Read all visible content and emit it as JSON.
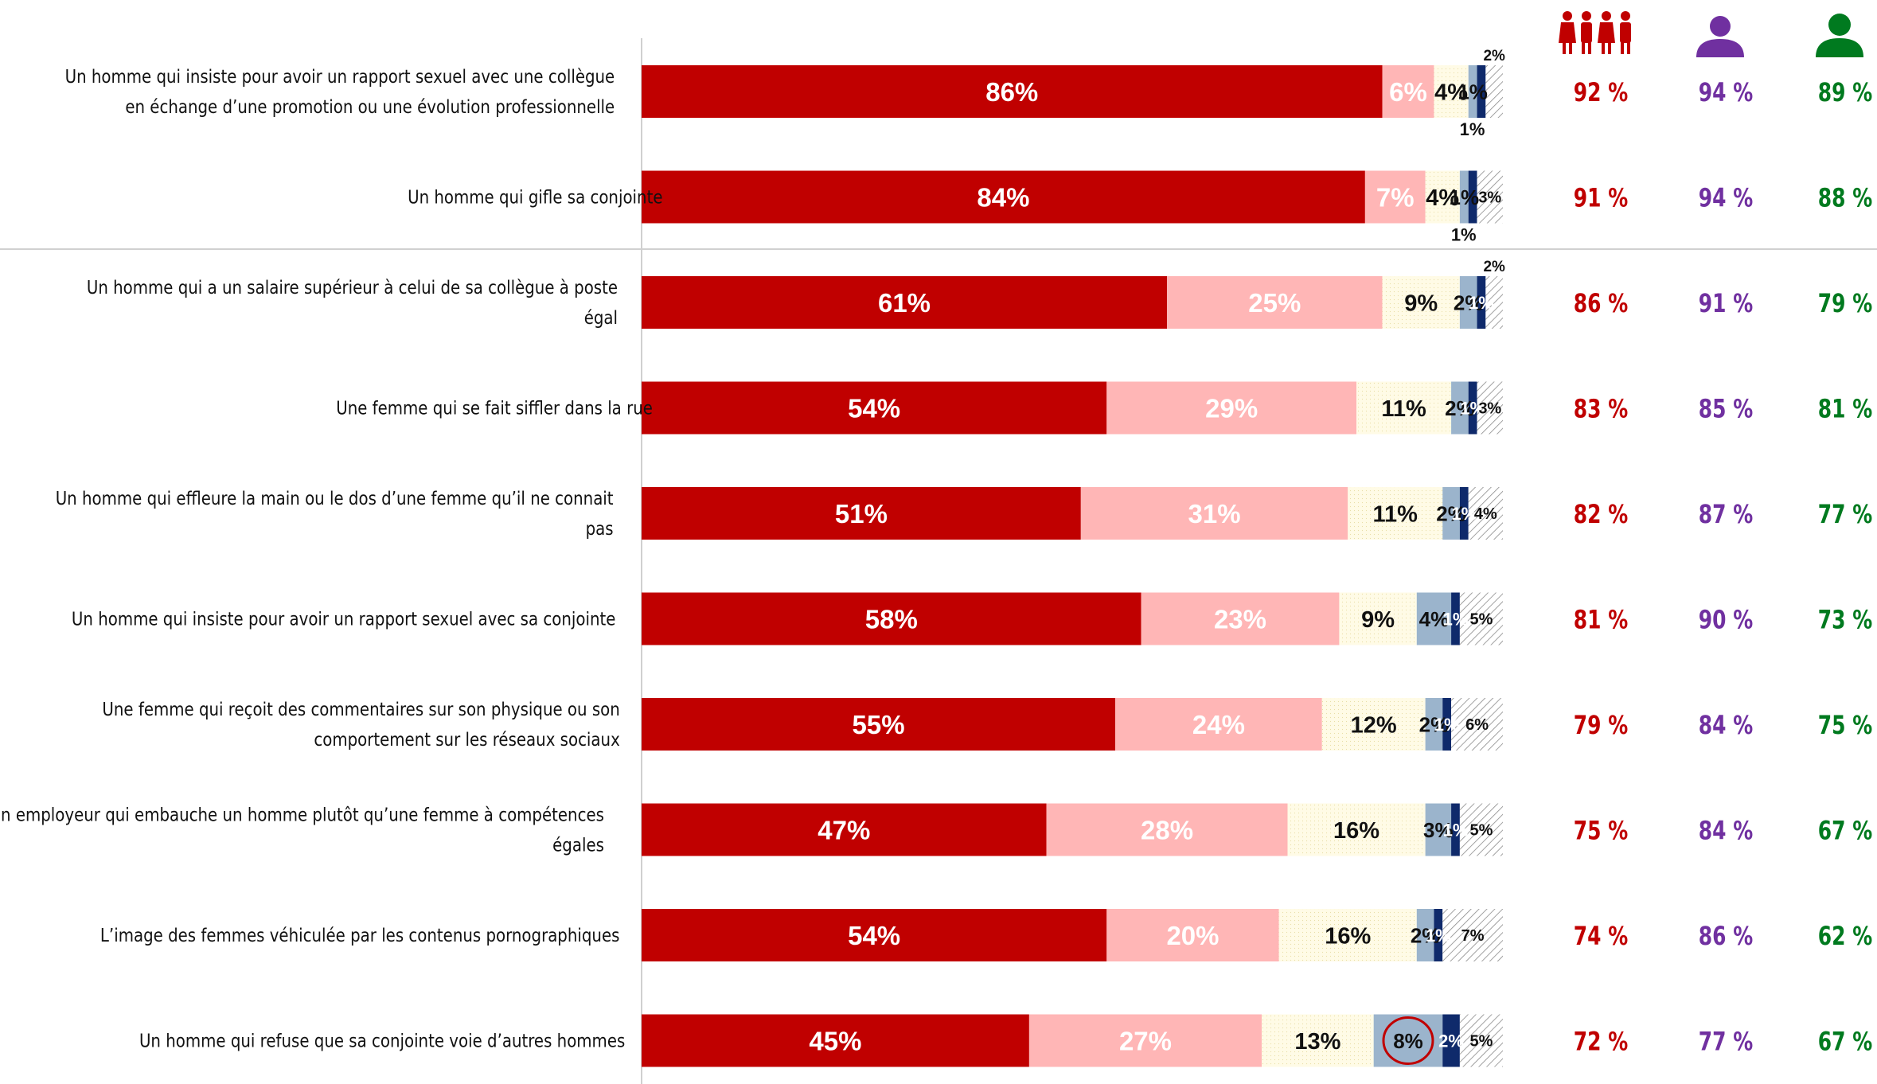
{
  "chart_data": {
    "type": "bar",
    "stacked": true,
    "orientation": "horizontal",
    "title": "",
    "xlabel": "",
    "ylabel": "",
    "xlim": [
      0,
      100
    ],
    "colors": {
      "s1": "#c00000",
      "s2": "#ffb6b6",
      "s3": "#fffbe6",
      "s4": "#9bb4cc",
      "s5": "#0f2a6b",
      "s6": "#ffffff",
      "total_all": "#c00000",
      "total_women": "#7030a0",
      "total_men": "#007a1f"
    },
    "column_icons": [
      "people-group-icon",
      "woman-icon",
      "man-icon"
    ],
    "categories": [
      "Un homme qui insiste pour avoir un rapport sexuel avec une collègue en échange d’une promotion ou une évolution professionnelle",
      "Un homme qui gifle sa conjointe",
      "Un homme qui a un salaire supérieur à celui de sa collègue à poste égal",
      "Une femme qui se fait siffler dans la rue",
      "Un homme qui effleure la main ou le dos d’une femme qu’il ne connait pas",
      "Un homme qui insiste pour avoir un rapport sexuel avec sa conjointe",
      "Une femme qui reçoit des commentaires sur son physique ou son comportement sur les réseaux sociaux",
      "Un employeur qui embauche un homme plutôt qu’une femme à compétences égales",
      "L’image des femmes véhiculée par les contenus pornographiques",
      "Un homme qui refuse que sa conjointe voie d’autres hommes"
    ],
    "series": [
      {
        "values": [
          86,
          84,
          61,
          54,
          51,
          58,
          55,
          47,
          54,
          45
        ]
      },
      {
        "values": [
          6,
          7,
          25,
          29,
          31,
          23,
          24,
          28,
          20,
          27
        ]
      },
      {
        "values": [
          4,
          4,
          9,
          11,
          11,
          9,
          12,
          16,
          16,
          13
        ]
      },
      {
        "values": [
          1,
          1,
          2,
          2,
          2,
          4,
          2,
          3,
          2,
          8
        ]
      },
      {
        "values": [
          1,
          1,
          1,
          1,
          1,
          1,
          1,
          1,
          1,
          2
        ]
      },
      {
        "values": [
          2,
          3,
          2,
          3,
          4,
          5,
          6,
          5,
          7,
          5
        ]
      }
    ],
    "totals": {
      "all": [
        "92 %",
        "91 %",
        "86 %",
        "83 %",
        "82 %",
        "81 %",
        "79 %",
        "75 %",
        "74 %",
        "72 %"
      ],
      "women": [
        "94 %",
        "94 %",
        "91 %",
        "85 %",
        "87 %",
        "90 %",
        "84 %",
        "84 %",
        "86 %",
        "77 %"
      ],
      "men": [
        "89 %",
        "88 %",
        "79 %",
        "81 %",
        "77 %",
        "73 %",
        "75 %",
        "67 %",
        "62 %",
        "67 %"
      ]
    },
    "highlight": {
      "row": 9,
      "series": 3
    }
  }
}
